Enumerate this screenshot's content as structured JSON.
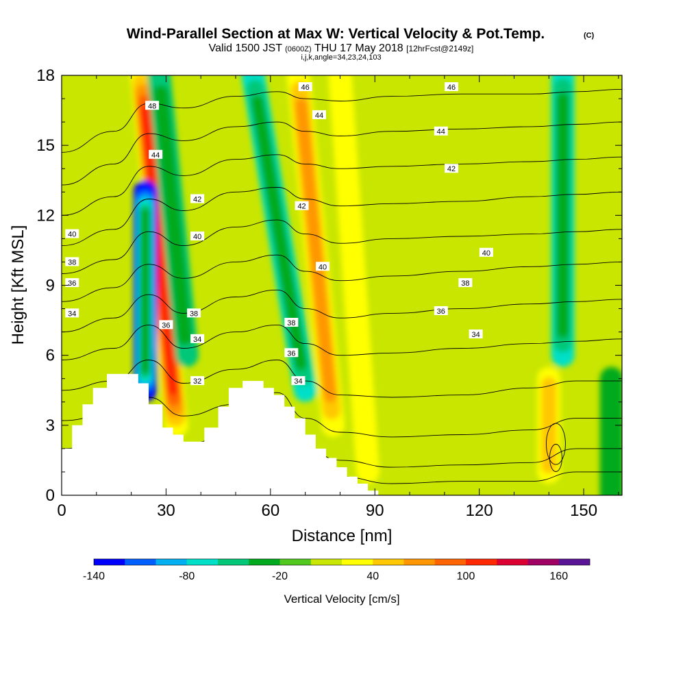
{
  "chart_data": {
    "type": "heatmap",
    "title": "Wind-Parallel Section at Max W: Vertical Velocity & Pot.Temp.",
    "title_mark": "(C)",
    "subtitle_main": "Valid 1500 JST",
    "subtitle_utc": "(0600Z)",
    "subtitle_date": "THU 17 May 2018",
    "subtitle_fcst": "[12hrFcst@2149z]",
    "subtitle_grid": "i,j,k,angle=34,23,24,103",
    "xlabel": "Distance [nm]",
    "ylabel": "Height [Kft MSL]",
    "xlim": [
      0,
      161
    ],
    "ylim": [
      0,
      18
    ],
    "x_ticks": [
      0,
      30,
      60,
      90,
      120,
      150
    ],
    "x_tick_labels": [
      "0",
      "30",
      "60",
      "90",
      "120",
      "150"
    ],
    "y_ticks": [
      0,
      3,
      6,
      9,
      12,
      15,
      18
    ],
    "y_tick_labels": [
      "0",
      "3",
      "6",
      "9",
      "12",
      "15",
      "18"
    ],
    "colorbar": {
      "label": "Vertical Velocity [cm/s]",
      "min": -140,
      "max": 180,
      "step": 20,
      "tick_values": [
        -140,
        -80,
        -20,
        40,
        100,
        160
      ],
      "tick_labels": [
        "-140",
        "-80",
        "-20",
        "40",
        "100",
        "160"
      ],
      "colors": [
        "#0000ff",
        "#0060ff",
        "#00b0f0",
        "#00e0c8",
        "#00c878",
        "#00aa1e",
        "#50c81e",
        "#c8e600",
        "#ffff00",
        "#ffc800",
        "#ff9600",
        "#ff6400",
        "#ff2800",
        "#dc0032",
        "#a00064",
        "#5a1496"
      ]
    },
    "vertical_velocity_features": [
      {
        "kind": "updraft",
        "x_start": 33,
        "y_start": 3,
        "x_end": 23,
        "y_end": 18,
        "peak_cm_s": 100
      },
      {
        "kind": "downdraft",
        "x": 24,
        "y_bottom": 4.5,
        "y_top": 13,
        "min_cm_s": -140
      },
      {
        "kind": "downdraft",
        "x_start": 36,
        "y_start": 6,
        "x_end": 28,
        "y_end": 18,
        "min_cm_s": -40
      },
      {
        "kind": "updraft",
        "x_start": 78,
        "y_start": 3,
        "x_end": 68,
        "y_end": 18,
        "peak_cm_s": 60
      },
      {
        "kind": "downdraft",
        "x_start": 70,
        "y_start": 4.5,
        "x_end": 55,
        "y_end": 18,
        "min_cm_s": -60
      },
      {
        "kind": "updraft",
        "x_start": 88,
        "y_start": 1,
        "x_end": 80,
        "y_end": 18,
        "peak_cm_s": 20
      },
      {
        "kind": "downdraft",
        "x": 144,
        "y_bottom": 6,
        "y_top": 18,
        "min_cm_s": -70
      },
      {
        "kind": "updraft",
        "x": 140,
        "y_bottom": 1,
        "y_top": 5,
        "peak_cm_s": 40
      },
      {
        "kind": "downdraft",
        "x": 158,
        "y_bottom": 0,
        "y_top": 5,
        "min_cm_s": -30
      }
    ],
    "potential_temperature_labels": [
      {
        "text": "48",
        "x": 26,
        "y": 16.7
      },
      {
        "text": "44",
        "x": 27,
        "y": 14.6
      },
      {
        "text": "42",
        "x": 39,
        "y": 12.7
      },
      {
        "text": "40",
        "x": 39,
        "y": 11.1
      },
      {
        "text": "38",
        "x": 38,
        "y": 7.8
      },
      {
        "text": "36",
        "x": 30,
        "y": 7.3
      },
      {
        "text": "34",
        "x": 39,
        "y": 6.7
      },
      {
        "text": "32",
        "x": 39,
        "y": 4.9
      },
      {
        "text": "40",
        "x": 3,
        "y": 11.2
      },
      {
        "text": "38",
        "x": 3,
        "y": 10
      },
      {
        "text": "36",
        "x": 3,
        "y": 9.1
      },
      {
        "text": "34",
        "x": 3,
        "y": 7.8
      },
      {
        "text": "46",
        "x": 70,
        "y": 17.5
      },
      {
        "text": "44",
        "x": 74,
        "y": 16.3
      },
      {
        "text": "42",
        "x": 69,
        "y": 12.4
      },
      {
        "text": "40",
        "x": 75,
        "y": 9.8
      },
      {
        "text": "38",
        "x": 66,
        "y": 7.4
      },
      {
        "text": "36",
        "x": 66,
        "y": 6.1
      },
      {
        "text": "34",
        "x": 68,
        "y": 4.9
      },
      {
        "text": "46",
        "x": 112,
        "y": 17.5
      },
      {
        "text": "44",
        "x": 109,
        "y": 15.6
      },
      {
        "text": "42",
        "x": 112,
        "y": 14
      },
      {
        "text": "40",
        "x": 122,
        "y": 10.4
      },
      {
        "text": "38",
        "x": 116,
        "y": 9.1
      },
      {
        "text": "36",
        "x": 109,
        "y": 7.9
      },
      {
        "text": "34",
        "x": 119,
        "y": 6.9
      }
    ]
  }
}
